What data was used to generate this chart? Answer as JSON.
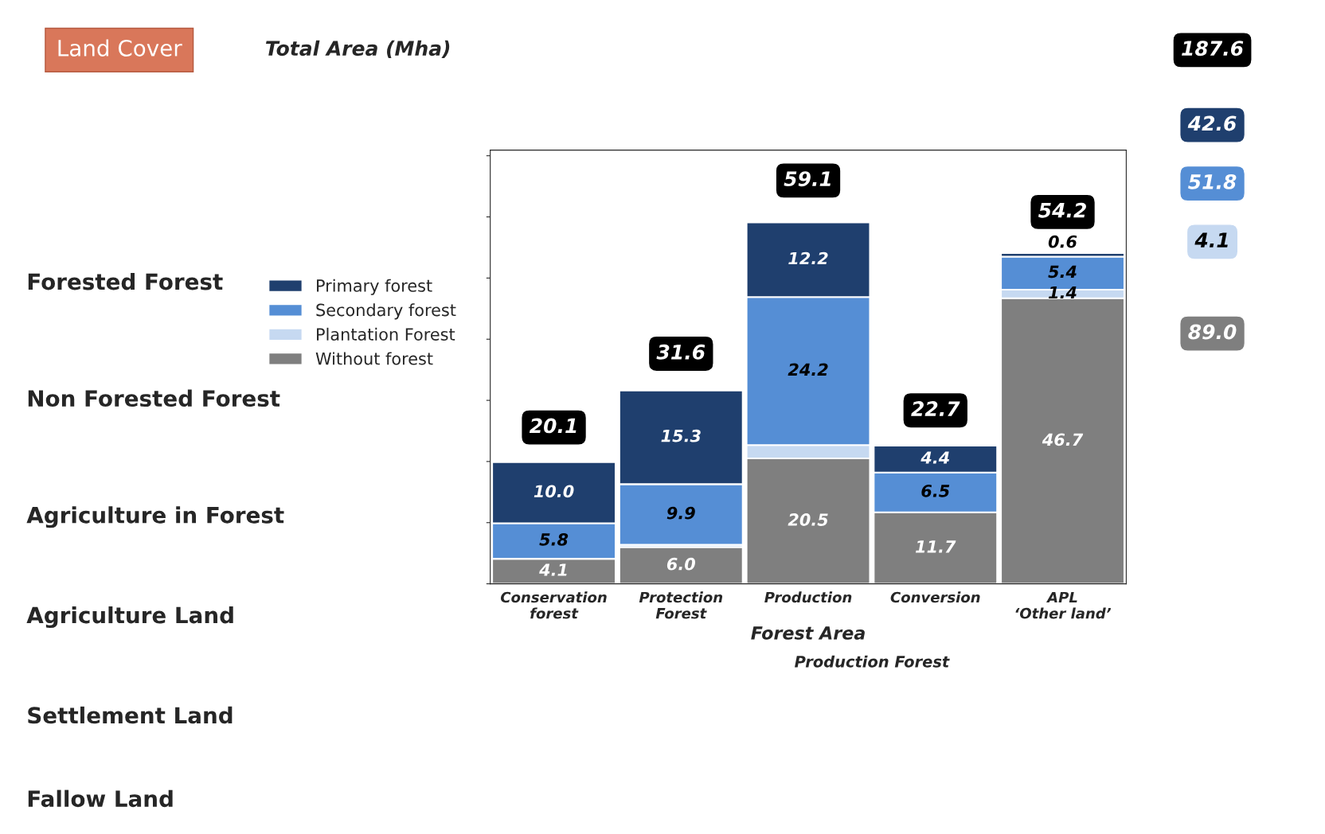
{
  "chart_data": {
    "type": "bar",
    "stacked": true,
    "title": "Land Cover",
    "subtitle": "Total Area (Mha)",
    "xlabel": "Forest Area",
    "categories": [
      "Conservation forest",
      "Protection Forest",
      "Production",
      "Conversion",
      "APL ‘Other land’"
    ],
    "series": [
      {
        "name": "Without forest",
        "color": "#7f7f7f",
        "values": [
          4.1,
          6.0,
          20.5,
          11.7,
          46.7
        ],
        "value_labels": [
          "4.1",
          "6.0",
          "20.5",
          "11.7",
          "46.7"
        ]
      },
      {
        "name": "Plantation Forest",
        "color": "#c6d9f1",
        "values": [
          null,
          0.4,
          2.2,
          null,
          1.4
        ],
        "value_labels": [
          null,
          null,
          null,
          null,
          "1.4"
        ]
      },
      {
        "name": "Secondary forest",
        "color": "#558ed5",
        "values": [
          5.8,
          9.9,
          24.2,
          6.5,
          5.4
        ],
        "value_labels": [
          "5.8",
          "9.9",
          "24.2",
          "6.5",
          "5.4"
        ]
      },
      {
        "name": "Primary forest",
        "color": "#1f3f6e",
        "values": [
          10.0,
          15.3,
          12.2,
          4.4,
          0.6
        ],
        "value_labels": [
          "10.0",
          "15.3",
          "12.2",
          "4.4",
          "0.6"
        ]
      }
    ],
    "totals": [
      "20.1",
      "31.6",
      "59.1",
      "22.7",
      "54.2"
    ],
    "legend": "left",
    "tick_labels": "x",
    "grid": false,
    "annotations": [
      "187.6",
      "42.6",
      "51.8",
      "4.1",
      "89.0",
      "Production Forest",
      "Forested Forest",
      "Non Forested Forest",
      "Agriculture in Forest",
      "Agriculture Land",
      "Settlement Land",
      "Fallow Land"
    ]
  }
}
